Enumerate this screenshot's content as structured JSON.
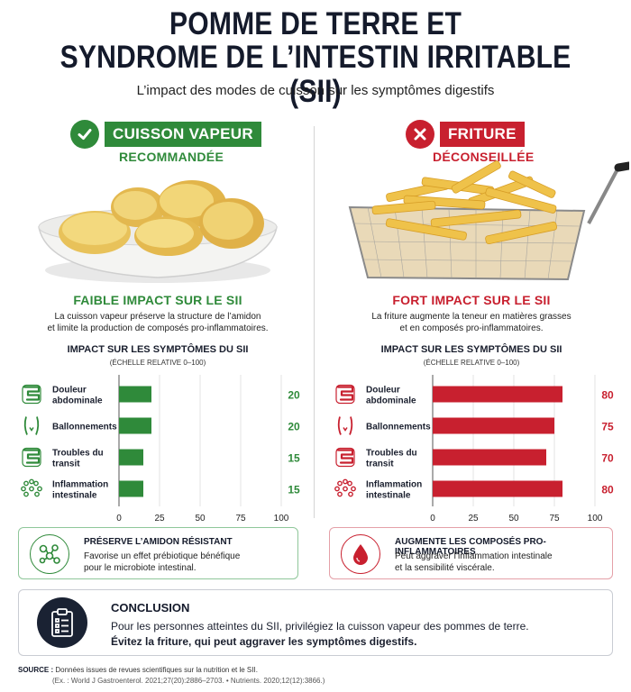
{
  "header": {
    "title_line1": "POMME DE TERRE ET",
    "title_line2": "SYNDROME DE L’INTESTIN IRRITABLE (SII)",
    "subtitle": "L’impact des modes de cuisson sur les symptômes digestifs"
  },
  "left": {
    "badge_icon": "check-icon",
    "badge": "CUISSON VAPEUR",
    "badge_sub": "RECOMMANDÉE",
    "impact_title": "FAIBLE IMPACT SUR LE SII",
    "impact_desc_line1": "La cuisson vapeur préserve la structure de l’amidon",
    "impact_desc_line2": "et limite la production de composés pro-inflammatoires.",
    "accent_color": "#2f8a3a",
    "card_icon": "prebiotic-molecule-icon",
    "card_title": "PRÉSERVE L’AMIDON RÉSISTANT",
    "card_text_line1": "Favorise un effet prébiotique bénéfique",
    "card_text_line2": "pour le microbiote intestinal."
  },
  "right": {
    "badge_icon": "cross-icon",
    "badge": "FRITURE",
    "badge_sub": "DÉCONSEILLÉE",
    "impact_title": "FORT IMPACT SUR LE SII",
    "impact_desc_line1": "La friture augmente la teneur en matières grasses",
    "impact_desc_line2": "et en composés pro-inflammatoires.",
    "accent_color": "#c8202f",
    "card_icon": "drop-icon",
    "card_title": "AUGMENTE LES COMPOSÉS PRO-INFLAMMATOIRES",
    "card_text_line1": "Peut aggraver l’inflammation intestinale",
    "card_text_line2": "et la sensibilité viscérale."
  },
  "chart_data": [
    {
      "type": "bar",
      "orientation": "horizontal",
      "title": "IMPACT SUR LES SYMPTÔMES DU SII",
      "subtitle": "(ÉCHELLE RELATIVE 0–100)",
      "categories": [
        [
          "Douleur",
          "abdominale"
        ],
        [
          "Ballonnements"
        ],
        [
          "Troubles du",
          "transit"
        ],
        [
          "Inflammation",
          "intestinale"
        ]
      ],
      "icons": [
        "intestine-icon",
        "bloated-belly-icon",
        "intestine-icon",
        "inflammation-icon"
      ],
      "values": [
        20,
        20,
        15,
        15
      ],
      "xlim": [
        0,
        100
      ],
      "xticks": [
        0,
        25,
        50,
        75,
        100
      ],
      "color": "#2f8a3a",
      "grid": true
    },
    {
      "type": "bar",
      "orientation": "horizontal",
      "title": "IMPACT SUR LES SYMPTÔMES DU SII",
      "subtitle": "(ÉCHELLE RELATIVE 0–100)",
      "categories": [
        [
          "Douleur",
          "abdominale"
        ],
        [
          "Ballonnements"
        ],
        [
          "Troubles du",
          "transit"
        ],
        [
          "Inflammation",
          "intestinale"
        ]
      ],
      "icons": [
        "intestine-icon",
        "bloated-belly-icon",
        "intestine-icon",
        "inflammation-icon"
      ],
      "values": [
        80,
        75,
        70,
        80
      ],
      "xlim": [
        0,
        100
      ],
      "xticks": [
        0,
        25,
        50,
        75,
        100
      ],
      "color": "#c8202f",
      "grid": true
    }
  ],
  "conclusion": {
    "icon": "clipboard-icon",
    "title": "CONCLUSION",
    "text": "Pour les personnes atteintes du SII, privilégiez la cuisson vapeur des pommes de terre.",
    "text_bold": "Évitez la friture, qui peut aggraver les symptômes digestifs."
  },
  "source": {
    "label": "SOURCE :",
    "text": "Données issues de revues scientifiques sur la nutrition et le SII.",
    "ref": "(Ex. : World J Gastroenterol. 2021;27(20):2886–2703. • Nutrients. 2020;12(12):3866.)"
  }
}
